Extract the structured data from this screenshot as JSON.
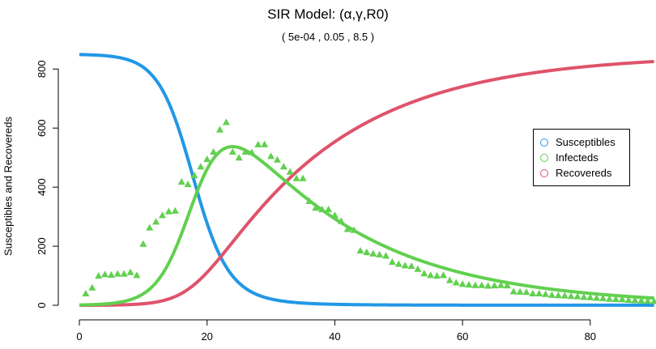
{
  "title": "SIR Model: (α,γ,R0)",
  "subtitle": "( 5e-04 , 0.05 , 8.5 )",
  "chart_data": {
    "type": "line",
    "title": "SIR Model: (α,γ,R0)",
    "subtitle": "( 5e-04 , 0.05 , 8.5 )",
    "xlabel": "",
    "ylabel": "Susceptibles and Recovereds",
    "xlim": [
      0,
      90
    ],
    "ylim": [
      0,
      850
    ],
    "x_ticks": [
      0,
      20,
      40,
      60,
      80
    ],
    "y_ticks": [
      0,
      200,
      400,
      600,
      800
    ],
    "grid": false,
    "legend_position": "right",
    "legend": [
      {
        "label": "Susceptibles",
        "color": "#2297e6"
      },
      {
        "label": "Infecteds",
        "color": "#61d04f"
      },
      {
        "label": "Recovereds",
        "color": "#df536b"
      }
    ],
    "model_params": {
      "alpha": 0.0005,
      "gamma": 0.05,
      "N": 850,
      "I0": 1
    },
    "series": [
      {
        "name": "Susceptibles",
        "kind": "line",
        "color": "#2297e6"
      },
      {
        "name": "Infecteds",
        "kind": "line",
        "color": "#61d04f"
      },
      {
        "name": "Recovereds",
        "kind": "line",
        "color": "#df536b"
      },
      {
        "name": "Infecteds (observed)",
        "kind": "points",
        "marker": "triangle",
        "color": "#61d04f",
        "x": [
          1,
          2,
          3,
          4,
          5,
          6,
          7,
          8,
          9,
          10,
          11,
          12,
          13,
          14,
          15,
          16,
          17,
          18,
          19,
          20,
          21,
          22,
          23,
          24,
          25,
          26,
          27,
          28,
          29,
          30,
          31,
          32,
          33,
          34,
          35,
          36,
          37,
          38,
          39,
          40,
          41,
          42,
          43,
          44,
          45,
          46,
          47,
          48,
          49,
          50,
          51,
          52,
          53,
          54,
          55,
          56,
          57,
          58,
          59,
          60,
          61,
          62,
          63,
          64,
          65,
          66,
          67,
          68,
          69,
          70,
          71,
          72,
          73,
          74,
          75,
          76,
          77,
          78,
          79,
          80,
          81,
          82,
          83,
          84,
          85,
          86,
          87,
          88,
          89,
          90
        ],
        "y": [
          40,
          60,
          100,
          105,
          103,
          107,
          107,
          112,
          102,
          208,
          263,
          283,
          305,
          318,
          320,
          418,
          410,
          440,
          470,
          495,
          520,
          595,
          620,
          520,
          500,
          520,
          518,
          545,
          545,
          505,
          493,
          470,
          452,
          430,
          430,
          353,
          330,
          325,
          325,
          305,
          285,
          258,
          255,
          185,
          180,
          175,
          172,
          168,
          147,
          140,
          135,
          133,
          123,
          108,
          102,
          100,
          102,
          85,
          77,
          72,
          70,
          68,
          68,
          66,
          67,
          68,
          67,
          47,
          46,
          45,
          40,
          40,
          38,
          35,
          34,
          33,
          31,
          30,
          28,
          27,
          25,
          24,
          22,
          21,
          20,
          18,
          17,
          16,
          15,
          14
        ]
      }
    ]
  }
}
